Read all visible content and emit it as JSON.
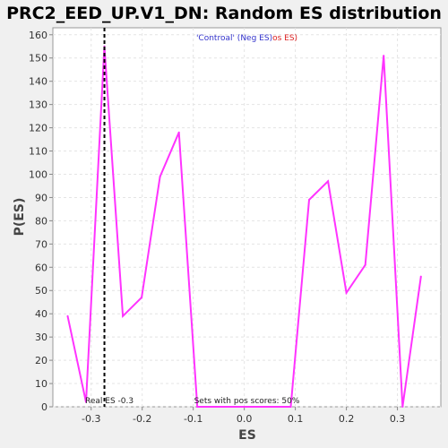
{
  "chart_data": {
    "type": "line",
    "title": "PRC2_EED_UP.V1_DN: Random ES distribution",
    "xlabel": "ES",
    "ylabel": "P(ES)",
    "xlim": [
      -0.375,
      0.385
    ],
    "ylim": [
      0,
      163
    ],
    "x_ticks": [
      -0.3,
      -0.2,
      -0.1,
      0.0,
      0.1,
      0.2,
      0.3
    ],
    "x_tick_labels": [
      "-0.3",
      "-0.2",
      "-0.1",
      "0.0",
      "0.1",
      "0.2",
      "0.3"
    ],
    "y_ticks": [
      0,
      10,
      20,
      30,
      40,
      50,
      60,
      70,
      80,
      90,
      100,
      110,
      120,
      130,
      140,
      150,
      160
    ],
    "y_tick_labels": [
      "0",
      "10",
      "20",
      "30",
      "40",
      "50",
      "60",
      "70",
      "80",
      "90",
      "100",
      "110",
      "120",
      "130",
      "140",
      "150",
      "160"
    ],
    "grid": true,
    "series": [
      {
        "color": "#ff33ff",
        "x": [
          -0.346,
          -0.31,
          -0.274,
          -0.238,
          -0.201,
          -0.165,
          -0.128,
          -0.092,
          -0.055,
          -0.019,
          0.018,
          0.054,
          0.091,
          0.127,
          0.164,
          0.2,
          0.237,
          0.273,
          0.31,
          0.346
        ],
        "y": [
          39,
          2,
          155,
          39,
          47,
          99,
          118,
          0,
          0,
          0,
          0,
          0,
          0,
          89,
          97,
          49,
          61,
          151,
          0,
          56
        ]
      }
    ],
    "real_es": {
      "x": -0.274,
      "label": "Real ES -0.3"
    },
    "legend": {
      "position": "top-center",
      "part_neg": "'Controal' (Neg ES)",
      "part_pos": "os ES)",
      "neg_color": "#3333cc",
      "pos_color": "#dd2222"
    },
    "annotation": "Sets with pos scores: 50%"
  }
}
